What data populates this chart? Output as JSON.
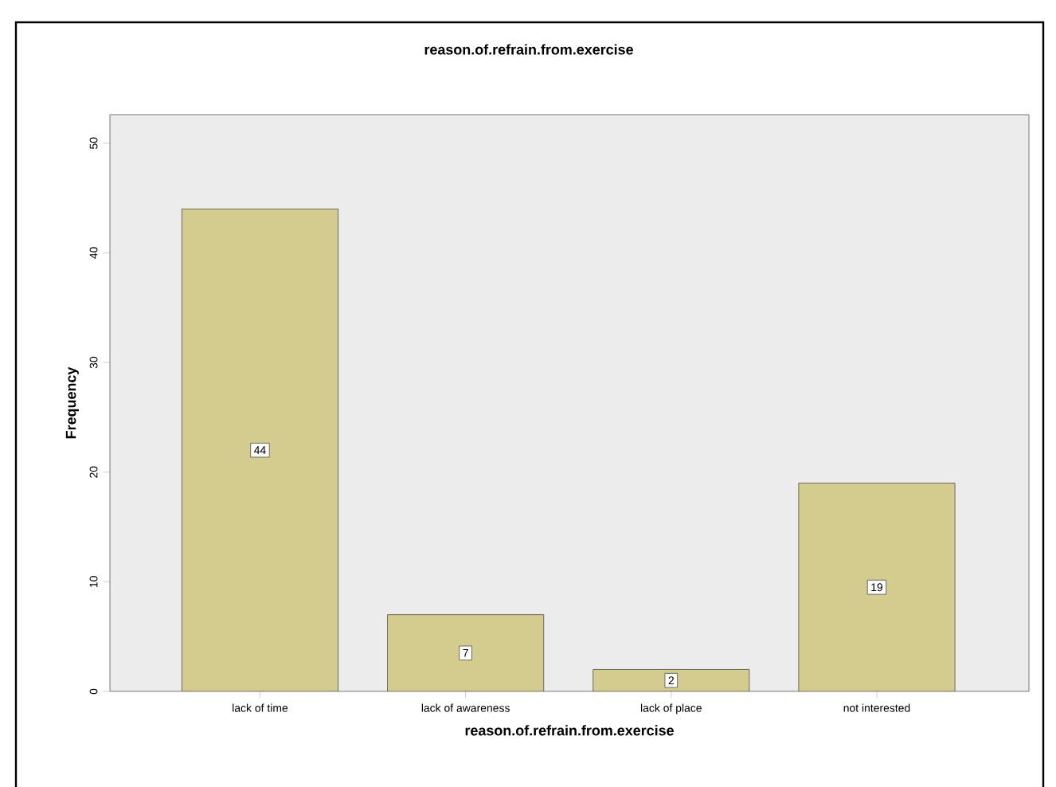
{
  "chart_data": {
    "type": "bar",
    "title": "reason.of.refrain.from.exercise",
    "xlabel": "reason.of.refrain.from.exercise",
    "ylabel": "Frequency",
    "categories": [
      "lack of time",
      "lack of awareness",
      "lack of place",
      "not interested"
    ],
    "values": [
      44,
      7,
      2,
      19
    ],
    "color": "#d4cc8e",
    "ylim": [
      0,
      52.6
    ],
    "yticks": [
      0,
      10,
      20,
      30,
      40,
      50
    ],
    "data_labels": true,
    "grid": false
  }
}
